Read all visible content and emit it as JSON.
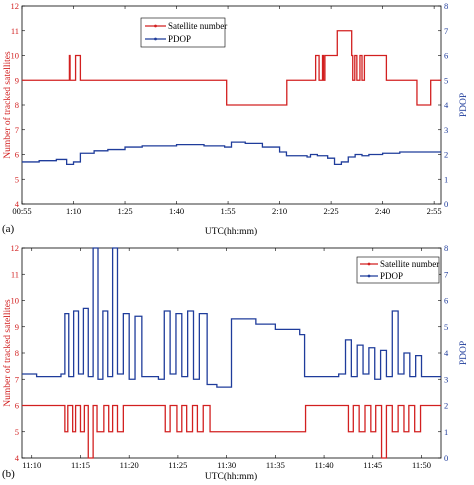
{
  "colors": {
    "satellite": "#d22020",
    "pdop": "#1f3c9b"
  },
  "chart_data": [
    {
      "type": "line",
      "panel_label": "(a)",
      "xlabel": "UTC(hh:mm)",
      "ylabel_left": "Number of tracked satellites",
      "ylabel_right": "PDOP",
      "xlim_minutes": [
        55,
        177
      ],
      "x_tick_labels": [
        "00:55",
        "1:10",
        "1:25",
        "1:40",
        "1:55",
        "2:10",
        "2:25",
        "2:40",
        "2:55"
      ],
      "x_tick_minutes": [
        55,
        70,
        85,
        100,
        115,
        130,
        145,
        160,
        175
      ],
      "ylim_left": [
        4,
        12
      ],
      "y_ticks_left": [
        4,
        5,
        6,
        7,
        8,
        9,
        10,
        11,
        12
      ],
      "ylim_right": [
        0,
        8
      ],
      "y_ticks_right": [
        0,
        1,
        2,
        3,
        4,
        5,
        6,
        7,
        8
      ],
      "legend": {
        "placement": "top-center",
        "entries": [
          "Satellite number",
          "PDOP"
        ]
      },
      "series": [
        {
          "name": "Satellite number",
          "axis": "left",
          "x_minutes": [
            55,
            68.5,
            68.8,
            69,
            70.3,
            70.6,
            71.1,
            72,
            114.6,
            125.6,
            132.1,
            140,
            140.5,
            141.5,
            142.5,
            142.8,
            143.2,
            143.5,
            146,
            146.8,
            147.2,
            151,
            151.3,
            151.9,
            152.5,
            153.4,
            154,
            154.7,
            161.1,
            166.7,
            170,
            174,
            177
          ],
          "values": [
            9,
            9,
            10,
            9,
            9,
            10,
            10,
            9,
            8,
            8,
            9,
            9,
            10,
            9,
            10,
            9,
            10,
            10,
            10,
            11,
            11,
            10,
            9,
            10,
            9,
            10,
            9,
            10,
            9,
            9,
            8,
            9,
            9
          ]
        },
        {
          "name": "PDOP",
          "axis": "right",
          "x_minutes": [
            55,
            60,
            65,
            68,
            70,
            72,
            76,
            80,
            85,
            90,
            100,
            108,
            114,
            116,
            120,
            125,
            130,
            132,
            138,
            139,
            141,
            144,
            146,
            148,
            150,
            152,
            154,
            156,
            160,
            165,
            170,
            177
          ],
          "values": [
            1.7,
            1.75,
            1.8,
            1.6,
            1.7,
            2.05,
            2.15,
            2.2,
            2.3,
            2.35,
            2.4,
            2.35,
            2.3,
            2.5,
            2.45,
            2.3,
            2.1,
            1.95,
            1.9,
            2.0,
            1.95,
            1.85,
            1.6,
            1.7,
            1.9,
            2.0,
            1.95,
            2.0,
            2.05,
            2.1,
            2.1,
            2.1
          ]
        }
      ]
    },
    {
      "type": "line",
      "panel_label": "(b)",
      "xlabel": "UTC(hh:mm)",
      "ylabel_left": "Number of tracked satellites",
      "ylabel_right": "PDOP",
      "xlim_minutes": [
        669,
        712
      ],
      "x_tick_labels": [
        "11:10",
        "11:15",
        "11:20",
        "11:25",
        "11:30",
        "11:35",
        "11:40",
        "11:45",
        "11:50"
      ],
      "x_tick_minutes": [
        670,
        675,
        680,
        685,
        690,
        695,
        700,
        705,
        710
      ],
      "ylim_left": [
        4,
        12
      ],
      "y_ticks_left": [
        4,
        5,
        6,
        7,
        8,
        9,
        10,
        11,
        12
      ],
      "ylim_right": [
        0,
        8
      ],
      "y_ticks_right": [
        0,
        1,
        2,
        3,
        4,
        5,
        6,
        7,
        8
      ],
      "legend": {
        "placement": "top-right",
        "entries": [
          "Satellite number",
          "PDOP"
        ]
      },
      "series": [
        {
          "name": "Satellite number",
          "axis": "left",
          "x_minutes": [
            669,
            673,
            673.4,
            673.7,
            674.2,
            674.5,
            675,
            675.4,
            675.8,
            676.3,
            676.7,
            677.4,
            677.9,
            678.3,
            678.8,
            679.4,
            681,
            683.7,
            684.2,
            684.9,
            685.4,
            685.9,
            686.5,
            687,
            687.6,
            688.3,
            690.2,
            690.6,
            691,
            697.6,
            698.1,
            702,
            702.5,
            703,
            703.6,
            704.2,
            704.8,
            705.3,
            705.9,
            706.4,
            707,
            707.6,
            708.2,
            708.7,
            709.3,
            709.9,
            712
          ],
          "values": [
            6,
            6,
            5,
            6,
            5,
            6,
            5,
            6,
            4,
            6,
            5,
            6,
            5,
            6,
            5,
            6,
            6,
            5,
            6,
            5,
            6,
            5,
            6,
            5,
            6,
            5,
            5,
            5,
            5,
            5,
            6,
            6,
            5,
            6,
            5,
            6,
            5,
            6,
            4,
            6,
            5,
            6,
            5,
            6,
            5,
            6,
            6
          ]
        },
        {
          "name": "PDOP",
          "axis": "right",
          "x_minutes": [
            669,
            670.5,
            672,
            673,
            673.4,
            673.8,
            674.3,
            674.8,
            675.3,
            675.8,
            676.3,
            676.8,
            677.3,
            677.8,
            678.3,
            678.8,
            679.4,
            680,
            680.6,
            681.3,
            683,
            683.6,
            684.2,
            684.8,
            685.4,
            686,
            686.6,
            687.2,
            688,
            689,
            690,
            690.5,
            691,
            693,
            695,
            697.5,
            698,
            700,
            701.5,
            702.2,
            702.8,
            703.4,
            704,
            704.6,
            705.2,
            705.8,
            706.4,
            707,
            707.6,
            708.2,
            708.8,
            709.4,
            710,
            712
          ],
          "values": [
            3.2,
            3.1,
            3.1,
            3.2,
            5.5,
            3.1,
            5.6,
            3.2,
            5.7,
            3.1,
            8.0,
            3.0,
            5.6,
            3.1,
            8.0,
            3.2,
            5.5,
            3.0,
            5.4,
            3.1,
            3.0,
            5.6,
            3.2,
            5.5,
            3.1,
            5.6,
            3.0,
            5.5,
            2.8,
            2.7,
            2.7,
            5.3,
            5.3,
            5.1,
            4.9,
            4.7,
            3.1,
            3.1,
            3.2,
            4.5,
            3.1,
            4.3,
            3.2,
            4.2,
            3.0,
            4.1,
            3.1,
            5.6,
            3.2,
            4.0,
            3.1,
            3.9,
            3.1,
            3.1
          ]
        }
      ]
    }
  ]
}
